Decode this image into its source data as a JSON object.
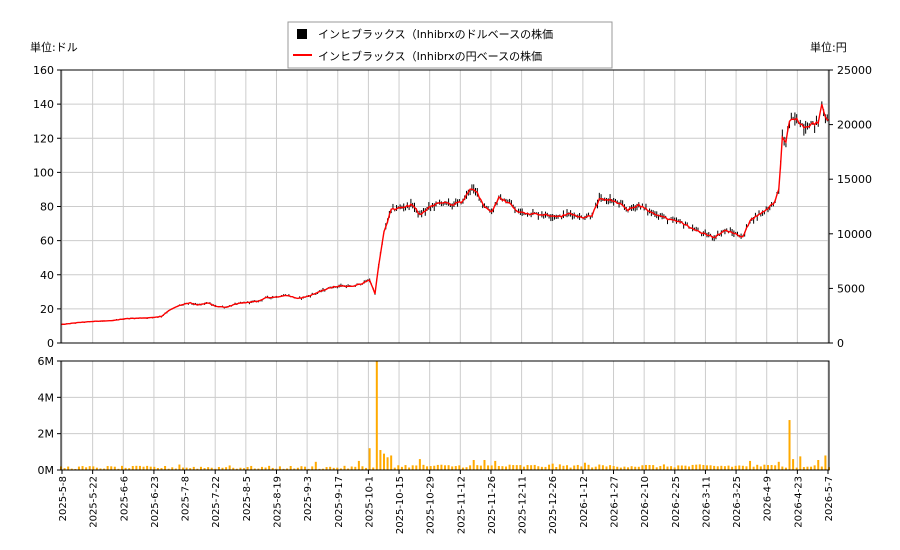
{
  "chart_data": [
    {
      "type": "ohlc-line",
      "legend": {
        "items": [
          {
            "label": "インヒブラックス（Inhibrxのドルベースの株価",
            "color": "#000000",
            "marker": "square"
          },
          {
            "label": "インヒブラックス（Inhibrxの円ベースの株価",
            "color": "#ff0000",
            "marker": "line"
          }
        ],
        "placement": "top-center"
      },
      "left_unit_label": "単位:ドル",
      "right_unit_label": "単位:円",
      "y_left_ticks": [
        "0",
        "20",
        "40",
        "60",
        "80",
        "100",
        "120",
        "140",
        "160"
      ],
      "y_right_ticks": [
        "0",
        "5000",
        "10000",
        "15000",
        "20000",
        "25000"
      ],
      "ylim_left": [
        0,
        160
      ],
      "ylim_right": [
        0,
        25000
      ],
      "grid": true,
      "x_ticks": [
        "2025-5-8",
        "2025-5-22",
        "2025-6-6",
        "2025-6-23",
        "2025-7-8",
        "2025-7-22",
        "2025-8-5",
        "2025-8-19",
        "2025-9-3",
        "2025-9-17",
        "2025-10-1",
        "2025-10-15",
        "2025-10-29",
        "2025-11-12",
        "2025-11-26",
        "2025-12-11",
        "2025-12-26",
        "2026-1-12",
        "2026-1-27",
        "2026-2-10",
        "2026-2-25",
        "2026-3-11",
        "2026-3-25",
        "2026-4-9",
        "2026-4-23",
        "2026-5-7"
      ],
      "series_keypoints_usd": [
        [
          0,
          10.8
        ],
        [
          5,
          12.0
        ],
        [
          10,
          12.8
        ],
        [
          14,
          13.0
        ],
        [
          18,
          14.3
        ],
        [
          22,
          14.6
        ],
        [
          25,
          14.8
        ],
        [
          28,
          15.6
        ],
        [
          30,
          19.0
        ],
        [
          33,
          22.0
        ],
        [
          36,
          23.5
        ],
        [
          38,
          22.2
        ],
        [
          41,
          23.5
        ],
        [
          43,
          21.5
        ],
        [
          46,
          21.0
        ],
        [
          49,
          23.0
        ],
        [
          52,
          23.8
        ],
        [
          55,
          24.5
        ],
        [
          57,
          26.5
        ],
        [
          60,
          27.0
        ],
        [
          63,
          28.0
        ],
        [
          66,
          26.0
        ],
        [
          69,
          27.5
        ],
        [
          72,
          30.0
        ],
        [
          75,
          32.5
        ],
        [
          78,
          33.5
        ],
        [
          81,
          33.0
        ],
        [
          84,
          35.0
        ],
        [
          86,
          37.0
        ],
        [
          87.5,
          29.0
        ],
        [
          88.5,
          45.0
        ],
        [
          90,
          65.0
        ],
        [
          92,
          78.0
        ],
        [
          95,
          79.5
        ],
        [
          98,
          81.0
        ],
        [
          100,
          75.0
        ],
        [
          103,
          80.0
        ],
        [
          106,
          82.5
        ],
        [
          109,
          81.0
        ],
        [
          112,
          83.0
        ],
        [
          114,
          90.5
        ],
        [
          116,
          88.0
        ],
        [
          118,
          80.0
        ],
        [
          120,
          77.0
        ],
        [
          122,
          85.0
        ],
        [
          125,
          82.0
        ],
        [
          127,
          77.0
        ],
        [
          130,
          76.0
        ],
        [
          133,
          75.5
        ],
        [
          136,
          75.0
        ],
        [
          139,
          74.0
        ],
        [
          142,
          76.0
        ],
        [
          145,
          73.5
        ],
        [
          148,
          75.0
        ],
        [
          150,
          84.0
        ],
        [
          153,
          84.0
        ],
        [
          156,
          81.0
        ],
        [
          158,
          78.0
        ],
        [
          161,
          81.0
        ],
        [
          164,
          77.0
        ],
        [
          167,
          74.5
        ],
        [
          170,
          72.0
        ],
        [
          173,
          70.5
        ],
        [
          176,
          67.0
        ],
        [
          179,
          64.0
        ],
        [
          182,
          62.0
        ],
        [
          185,
          66.0
        ],
        [
          188,
          64.0
        ],
        [
          190,
          62.0
        ],
        [
          192,
          72.0
        ],
        [
          195,
          76.0
        ],
        [
          197,
          79.0
        ],
        [
          199,
          83.0
        ],
        [
          200,
          90.0
        ],
        [
          201,
          120.0
        ],
        [
          202,
          118.0
        ],
        [
          203,
          130.0
        ],
        [
          205,
          131.0
        ],
        [
          207,
          127.0
        ],
        [
          209,
          128.0
        ],
        [
          211,
          129.0
        ],
        [
          212,
          140.0
        ],
        [
          213,
          133.0
        ],
        [
          214,
          130.0
        ]
      ],
      "volume_panel": {
        "y_ticks": [
          "0M",
          "2M",
          "4M",
          "6M"
        ],
        "ylim": [
          0,
          6
        ],
        "color": "#ffaa00",
        "spikes": [
          {
            "day": 20,
            "value": 0.22
          },
          {
            "day": 33,
            "value": 0.3
          },
          {
            "day": 47,
            "value": 0.25
          },
          {
            "day": 71,
            "value": 0.45
          },
          {
            "day": 83,
            "value": 0.5
          },
          {
            "day": 86,
            "value": 1.2
          },
          {
            "day": 88,
            "value": 6.0
          },
          {
            "day": 89,
            "value": 1.1
          },
          {
            "day": 90,
            "value": 0.9
          },
          {
            "day": 91,
            "value": 0.7
          },
          {
            "day": 92,
            "value": 0.8
          },
          {
            "day": 100,
            "value": 0.6
          },
          {
            "day": 115,
            "value": 0.55
          },
          {
            "day": 118,
            "value": 0.55
          },
          {
            "day": 121,
            "value": 0.5
          },
          {
            "day": 137,
            "value": 0.35
          },
          {
            "day": 146,
            "value": 0.4
          },
          {
            "day": 192,
            "value": 0.5
          },
          {
            "day": 200,
            "value": 0.45
          },
          {
            "day": 203,
            "value": 2.75
          },
          {
            "day": 204,
            "value": 0.6
          },
          {
            "day": 206,
            "value": 0.75
          },
          {
            "day": 211,
            "value": 0.55
          },
          {
            "day": 213,
            "value": 0.8
          }
        ]
      }
    }
  ]
}
